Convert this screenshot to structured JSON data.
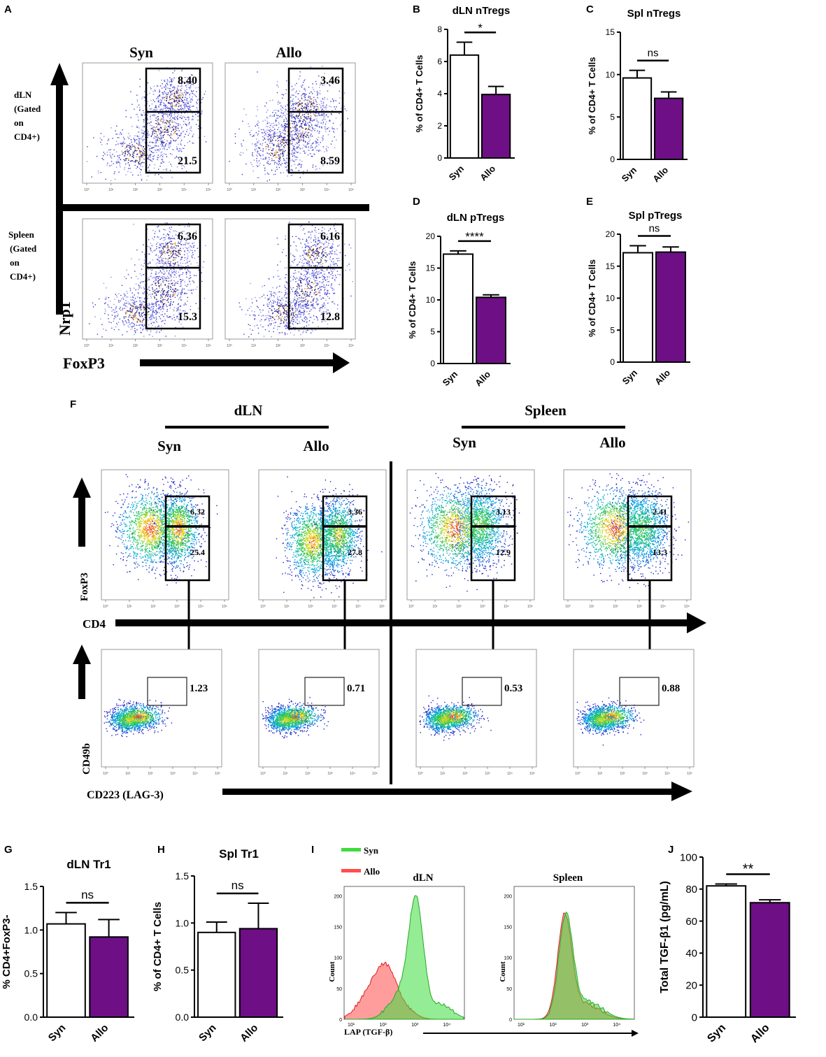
{
  "panel_letters": {
    "A": "A",
    "B": "B",
    "C": "C",
    "D": "D",
    "E": "E",
    "F": "F",
    "G": "G",
    "H": "H",
    "I": "I",
    "J": "J"
  },
  "panelA": {
    "col_syn": "Syn",
    "col_allo": "Allo",
    "row_dln_label": [
      "dLN",
      "(Gated",
      "on",
      "CD4+)"
    ],
    "row_spleen_label": [
      "Spleen",
      "(Gated",
      "on",
      "CD4+)"
    ],
    "y_axis": "Nrp1",
    "x_axis": "FoxP3",
    "dln_syn_upper": "8.40",
    "dln_syn_lower": "21.5",
    "dln_allo_upper": "3.46",
    "dln_allo_lower": "8.59",
    "spl_syn_upper": "6.36",
    "spl_syn_lower": "15.3",
    "spl_allo_upper": "6.16",
    "spl_allo_lower": "12.8",
    "tick_labels": [
      "10⁰",
      "10¹",
      "10²",
      "10³",
      "10⁴",
      "10⁵"
    ]
  },
  "panelF": {
    "group_dln": "dLN",
    "group_spleen": "Spleen",
    "col_syn_1": "Syn",
    "col_allo_1": "Allo",
    "col_syn_2": "Syn",
    "col_allo_2": "Allo",
    "top_y_axis": "FoxP3",
    "top_x_axis": "CD4",
    "bottom_y_axis": "CD49b",
    "bottom_x_axis": "CD223 (LAG-3)",
    "top_values": [
      [
        "6.32",
        "25.4"
      ],
      [
        "3.36",
        "27.8"
      ],
      [
        "3.13",
        "12.9"
      ],
      [
        "2.41",
        "13.3"
      ]
    ],
    "bottom_values": [
      "1.23",
      "0.71",
      "0.53",
      "0.88"
    ],
    "tick_labels": [
      "10⁰",
      "10¹",
      "10²",
      "10³",
      "10⁴",
      "10⁵"
    ]
  },
  "panelI": {
    "legend_syn": "Syn",
    "legend_allo": "Allo",
    "title_dln": "dLN",
    "title_spleen": "Spleen",
    "ylabel": "Count",
    "xlabel": "LAP (TGF-β)",
    "yticks_dln": [
      "0",
      "50",
      "100",
      "150",
      "200"
    ],
    "yticks_spleen": [
      "0",
      "50",
      "100",
      "150",
      "200"
    ],
    "xticks": [
      "10¹",
      "10²",
      "10³",
      "10⁴"
    ],
    "colors": {
      "syn": "#3ddc3d",
      "allo": "#ff4d4d"
    }
  },
  "colors": {
    "allo_bar": "#6e0f86",
    "syn_bar": "#ffffff"
  },
  "chart_data": [
    {
      "id": "B",
      "type": "bar",
      "title": "dLN nTregs",
      "categories": [
        "Syn",
        "Allo"
      ],
      "values": [
        6.4,
        3.95
      ],
      "errors": [
        0.8,
        0.5
      ],
      "ylabel": "% of CD4+ T Cells",
      "ylim": [
        0,
        8
      ],
      "yticks": [
        "0",
        "2",
        "4",
        "6",
        "8"
      ],
      "significance": "*"
    },
    {
      "id": "C",
      "type": "bar",
      "title": "Spl nTregs",
      "categories": [
        "Syn",
        "Allo"
      ],
      "values": [
        9.6,
        7.2
      ],
      "errors": [
        0.9,
        0.75
      ],
      "ylabel": "% of CD4+ T Cells",
      "ylim": [
        0,
        15
      ],
      "yticks": [
        "0",
        "5",
        "10",
        "15"
      ],
      "significance": "ns"
    },
    {
      "id": "D",
      "type": "bar",
      "title": "dLN pTregs",
      "categories": [
        "Syn",
        "Allo"
      ],
      "values": [
        17.2,
        10.4
      ],
      "errors": [
        0.5,
        0.4
      ],
      "ylabel": "% of CD4+ T Cells",
      "ylim": [
        0,
        20
      ],
      "yticks": [
        "0",
        "5",
        "10",
        "15",
        "20"
      ],
      "significance": "****"
    },
    {
      "id": "E",
      "type": "bar",
      "title": "Spl pTregs",
      "categories": [
        "Syn",
        "Allo"
      ],
      "values": [
        17.1,
        17.2
      ],
      "errors": [
        1.1,
        0.8
      ],
      "ylabel": "% of CD4+ T Cells",
      "ylim": [
        0,
        20
      ],
      "yticks": [
        "0",
        "5",
        "10",
        "15",
        "20"
      ],
      "significance": "ns"
    },
    {
      "id": "G",
      "type": "bar",
      "title": "dLN Tr1",
      "categories": [
        "Syn",
        "Allo"
      ],
      "values": [
        1.07,
        0.92
      ],
      "errors": [
        0.13,
        0.2
      ],
      "ylabel": "% CD4+FoxP3-",
      "ylim": [
        0,
        1.5
      ],
      "yticks": [
        "0.0",
        "0.5",
        "1.0",
        "1.5"
      ],
      "significance": "ns"
    },
    {
      "id": "H",
      "type": "bar",
      "title": "Spl Tr1",
      "categories": [
        "Syn",
        "Allo"
      ],
      "values": [
        0.9,
        0.94
      ],
      "errors": [
        0.11,
        0.27
      ],
      "ylabel": "% of CD4+ T Cells",
      "ylim": [
        0,
        1.5
      ],
      "yticks": [
        "0.0",
        "0.5",
        "1.0",
        "1.5"
      ],
      "significance": "ns"
    },
    {
      "id": "J",
      "type": "bar",
      "title": "",
      "categories": [
        "Syn",
        "Allo"
      ],
      "values": [
        82,
        71.5
      ],
      "errors": [
        1.2,
        1.8
      ],
      "ylabel": "Total TGF-β1 (pg/mL)",
      "ylim": [
        0,
        100
      ],
      "yticks": [
        "0",
        "20",
        "40",
        "60",
        "80",
        "100"
      ],
      "significance": "**"
    }
  ]
}
